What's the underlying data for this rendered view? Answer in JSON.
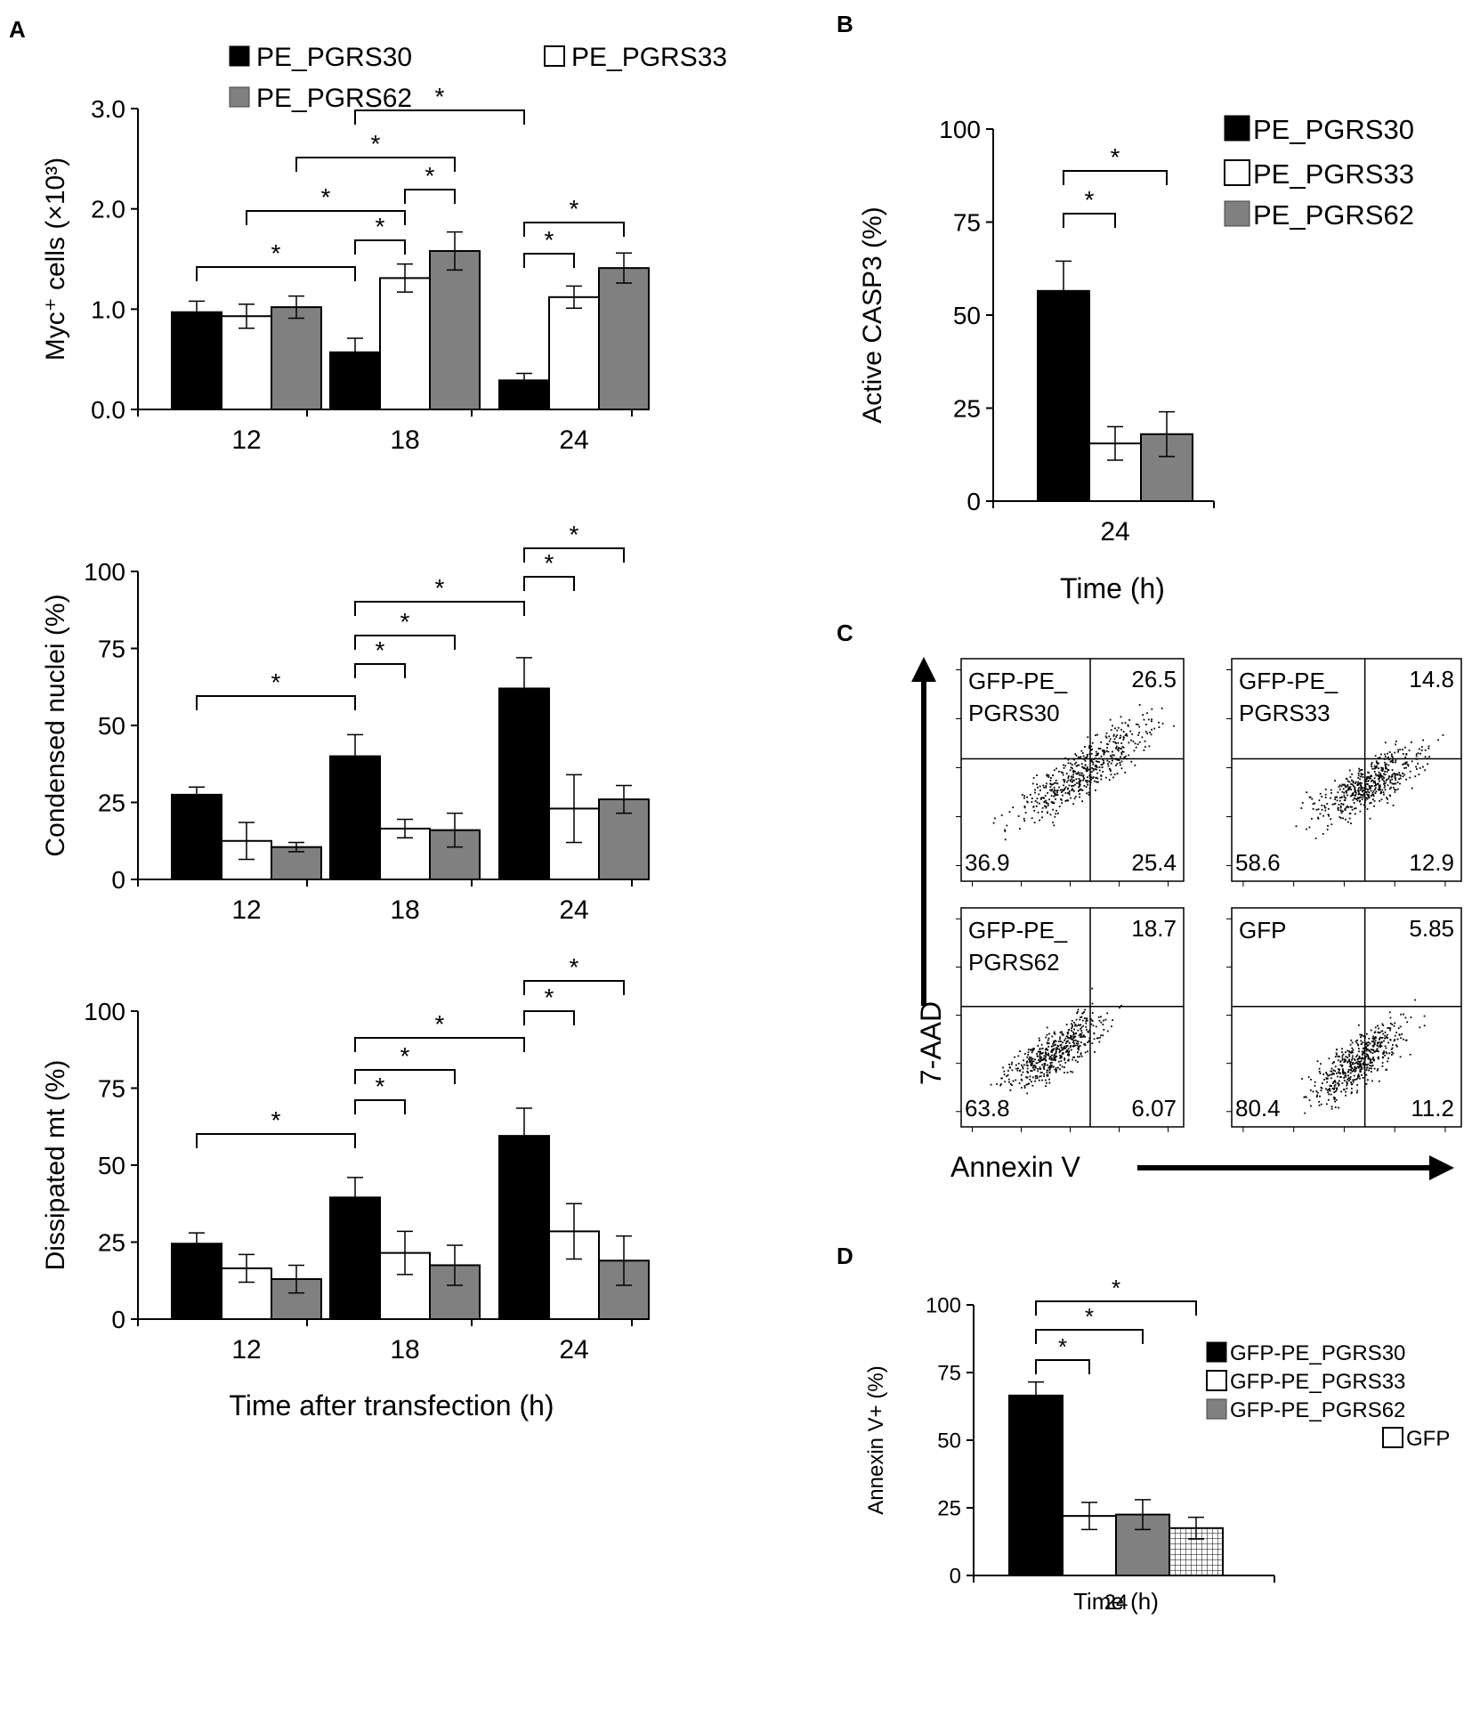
{
  "panel_labels": [
    "A",
    "B",
    "C",
    "D"
  ],
  "colors": {
    "PE_PGRS30": "#000000",
    "PE_PGRS33": "#ffffff",
    "PE_PGRS62": "#808080",
    "GFP": "#ffffff"
  },
  "chart_data": [
    {
      "id": "A1",
      "type": "bar",
      "categories": [
        "12",
        "18",
        "24"
      ],
      "series": [
        {
          "name": "PE_PGRS30",
          "values": [
            0.97,
            0.57,
            0.29
          ],
          "errors": [
            0.11,
            0.14,
            0.07
          ]
        },
        {
          "name": "PE_PGRS33",
          "values": [
            0.93,
            1.31,
            1.12
          ],
          "errors": [
            0.12,
            0.14,
            0.11
          ]
        },
        {
          "name": "PE_PGRS62",
          "values": [
            1.02,
            1.58,
            1.41
          ],
          "errors": [
            0.11,
            0.19,
            0.15
          ]
        }
      ],
      "legend": [
        "PE_PGRS30",
        "PE_PGRS33",
        "PE_PGRS62"
      ],
      "ylabel": "Myc⁺ cells (×10³)",
      "yticks": [
        "0.0",
        "1.0",
        "2.0",
        "3.0"
      ],
      "ylim": [
        0,
        3.0
      ],
      "xlabel": "",
      "significance_mark": "*"
    },
    {
      "id": "A2",
      "type": "bar",
      "categories": [
        "12",
        "18",
        "24"
      ],
      "series": [
        {
          "name": "PE_PGRS30",
          "values": [
            27.5,
            40,
            62
          ],
          "errors": [
            2.5,
            7,
            10
          ]
        },
        {
          "name": "PE_PGRS33",
          "values": [
            12.5,
            16.5,
            23
          ],
          "errors": [
            6,
            3,
            11
          ]
        },
        {
          "name": "PE_PGRS62",
          "values": [
            10.5,
            16,
            26
          ],
          "errors": [
            1.5,
            5.5,
            4.5
          ]
        }
      ],
      "ylabel": "Condensed nuclei (%)",
      "yticks": [
        "0",
        "25",
        "50",
        "75",
        "100"
      ],
      "ylim": [
        0,
        100
      ],
      "xlabel": "",
      "significance_mark": "*"
    },
    {
      "id": "A3",
      "type": "bar",
      "categories": [
        "12",
        "18",
        "24"
      ],
      "series": [
        {
          "name": "PE_PGRS30",
          "values": [
            24.5,
            39.5,
            59.5
          ],
          "errors": [
            3.5,
            6.5,
            9
          ]
        },
        {
          "name": "PE_PGRS33",
          "values": [
            16.5,
            21.5,
            28.5
          ],
          "errors": [
            4.5,
            7,
            9
          ]
        },
        {
          "name": "PE_PGRS62",
          "values": [
            13,
            17.5,
            19
          ],
          "errors": [
            4.5,
            6.5,
            8
          ]
        }
      ],
      "ylabel": "Dissipated mt (%)",
      "yticks": [
        "0",
        "25",
        "50",
        "75",
        "100"
      ],
      "ylim": [
        0,
        100
      ],
      "xlabel": "Time after transfection (h)",
      "significance_mark": "*"
    },
    {
      "id": "B",
      "type": "bar",
      "categories": [
        "24"
      ],
      "series": [
        {
          "name": "PE_PGRS30",
          "values": [
            56.5
          ],
          "errors": [
            8
          ]
        },
        {
          "name": "PE_PGRS33",
          "values": [
            15.5
          ],
          "errors": [
            4.5
          ]
        },
        {
          "name": "PE_PGRS62",
          "values": [
            18
          ],
          "errors": [
            6
          ]
        }
      ],
      "legend": [
        "PE_PGRS30",
        "PE_PGRS33",
        "PE_PGRS62"
      ],
      "ylabel": "Active CASP3 (%)",
      "yticks": [
        "0",
        "25",
        "50",
        "75",
        "100"
      ],
      "ylim": [
        0,
        100
      ],
      "xlabel": "Time (h)",
      "significance_mark": "*"
    },
    {
      "id": "C",
      "type": "scatter",
      "title": "",
      "xlabel": "Annexin V",
      "ylabel": "7-AAD",
      "subplots": [
        {
          "label": "GFP-PE_\nPGRS30",
          "q_ur": "26.5",
          "q_ll": "36.9",
          "q_lr": "25.4"
        },
        {
          "label": "GFP-PE_\nPGRS33",
          "q_ur": "14.8",
          "q_ll": "58.6",
          "q_lr": "12.9"
        },
        {
          "label": "GFP-PE_\nPGRS62",
          "q_ur": "18.7",
          "q_ll": "63.8",
          "q_lr": "6.07"
        },
        {
          "label": "GFP",
          "q_ur": "5.85",
          "q_ll": "80.4",
          "q_lr": "11.2"
        }
      ]
    },
    {
      "id": "D",
      "type": "bar",
      "categories": [
        "24"
      ],
      "series": [
        {
          "name": "GFP-PE_PGRS30",
          "values": [
            66.5
          ],
          "errors": [
            5
          ]
        },
        {
          "name": "GFP-PE_PGRS33",
          "values": [
            22
          ],
          "errors": [
            5
          ]
        },
        {
          "name": "GFP-PE_PGRS62",
          "values": [
            22.5
          ],
          "errors": [
            5.5
          ]
        },
        {
          "name": "GFP",
          "values": [
            17.5
          ],
          "errors": [
            4
          ]
        }
      ],
      "legend": [
        "GFP-PE_PGRS30",
        "GFP-PE_PGRS33",
        "GFP-PE_PGRS62",
        "GFP"
      ],
      "ylabel": "Annexin V+ (%)",
      "yticks": [
        "0",
        "25",
        "50",
        "75",
        "100"
      ],
      "ylim": [
        0,
        100
      ],
      "xlabel": "Time (h)",
      "significance_mark": "*"
    }
  ]
}
